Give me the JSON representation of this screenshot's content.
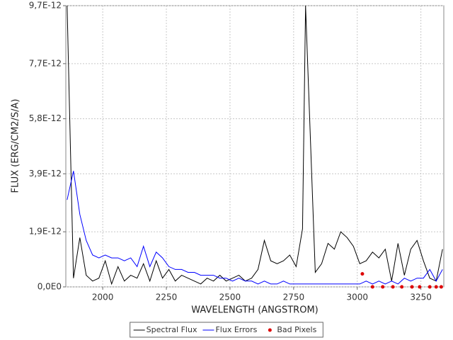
{
  "chart_data": {
    "type": "line",
    "x_label": "WAVELENGTH (ANGSTROM)",
    "y_label": "FLUX (ERG/CM2/S/A)",
    "xlim": [
      1855,
      3340
    ],
    "ylim": [
      0,
      9.7e-12
    ],
    "xticks": [
      2000,
      2250,
      2500,
      2750,
      3000,
      3250
    ],
    "yticks": [
      {
        "value": 0,
        "label": "0,0E0"
      },
      {
        "value": 1.9e-12,
        "label": "1,9E-12"
      },
      {
        "value": 3.9e-12,
        "label": "3,9E-12"
      },
      {
        "value": 5.8e-12,
        "label": "5,8E-12"
      },
      {
        "value": 7.7e-12,
        "label": "7,7E-12"
      },
      {
        "value": 9.7e-12,
        "label": "9,7E-12"
      }
    ],
    "grid": true,
    "legend": "bottom",
    "x": [
      1860,
      1885,
      1910,
      1935,
      1960,
      1985,
      2010,
      2035,
      2060,
      2085,
      2110,
      2135,
      2160,
      2185,
      2210,
      2235,
      2260,
      2285,
      2310,
      2335,
      2360,
      2385,
      2410,
      2435,
      2460,
      2485,
      2510,
      2535,
      2560,
      2585,
      2610,
      2635,
      2660,
      2685,
      2710,
      2735,
      2760,
      2785,
      2797,
      2835,
      2860,
      2885,
      2910,
      2935,
      2960,
      2985,
      3010,
      3035,
      3060,
      3085,
      3110,
      3135,
      3160,
      3185,
      3210,
      3235,
      3260,
      3285,
      3310,
      3335
    ],
    "series": [
      {
        "name": "Spectral Flux",
        "color": "#000000",
        "type": "line",
        "values": [
          9.7e-12,
          3e-13,
          1.7e-12,
          4e-13,
          2e-13,
          3e-13,
          9e-13,
          1e-13,
          7e-13,
          2e-13,
          4e-13,
          3e-13,
          8e-13,
          2e-13,
          9e-13,
          3e-13,
          6e-13,
          2e-13,
          4e-13,
          3e-13,
          2e-13,
          1e-13,
          3e-13,
          2e-13,
          4e-13,
          2e-13,
          3e-13,
          4e-13,
          2e-13,
          3e-13,
          6e-13,
          1.6e-12,
          9e-13,
          8e-13,
          9e-13,
          1.1e-12,
          7e-13,
          2e-12,
          9.7e-12,
          5e-13,
          8e-13,
          1.5e-12,
          1.3e-12,
          1.9e-12,
          1.7e-12,
          1.4e-12,
          8e-13,
          9e-13,
          1.2e-12,
          1e-12,
          1.3e-12,
          2e-13,
          1.5e-12,
          4e-13,
          1.3e-12,
          1.6e-12,
          9e-13,
          3e-13,
          2e-13,
          1.3e-12
        ]
      },
      {
        "name": "Flux Errors",
        "color": "#0000ff",
        "type": "line",
        "values": [
          3e-12,
          4e-12,
          2.5e-12,
          1.6e-12,
          1.1e-12,
          1e-12,
          1.1e-12,
          1e-12,
          1e-12,
          9e-13,
          1e-12,
          7e-13,
          1.4e-12,
          7e-13,
          1.2e-12,
          1e-12,
          7e-13,
          6e-13,
          6e-13,
          5e-13,
          5e-13,
          4e-13,
          4e-13,
          4e-13,
          3e-13,
          3e-13,
          2e-13,
          3e-13,
          2e-13,
          2e-13,
          1e-13,
          2e-13,
          1e-13,
          1e-13,
          2e-13,
          1e-13,
          1e-13,
          1e-13,
          1e-13,
          1e-13,
          1e-13,
          1e-13,
          1e-13,
          1e-13,
          1e-13,
          1e-13,
          1e-13,
          2e-13,
          1e-13,
          2e-13,
          1e-13,
          2e-13,
          1e-13,
          3e-13,
          2e-13,
          3e-13,
          3e-13,
          6e-13,
          2e-13,
          6e-13
        ]
      },
      {
        "name": "Bad Pixels",
        "color": "#dd0000",
        "type": "scatter",
        "x": [
          3020,
          3060,
          3100,
          3140,
          3175,
          3215,
          3245,
          3285,
          3310,
          3330
        ],
        "values": [
          4.5e-13,
          0,
          0,
          0,
          0,
          0,
          0,
          0,
          0,
          0
        ]
      }
    ]
  }
}
